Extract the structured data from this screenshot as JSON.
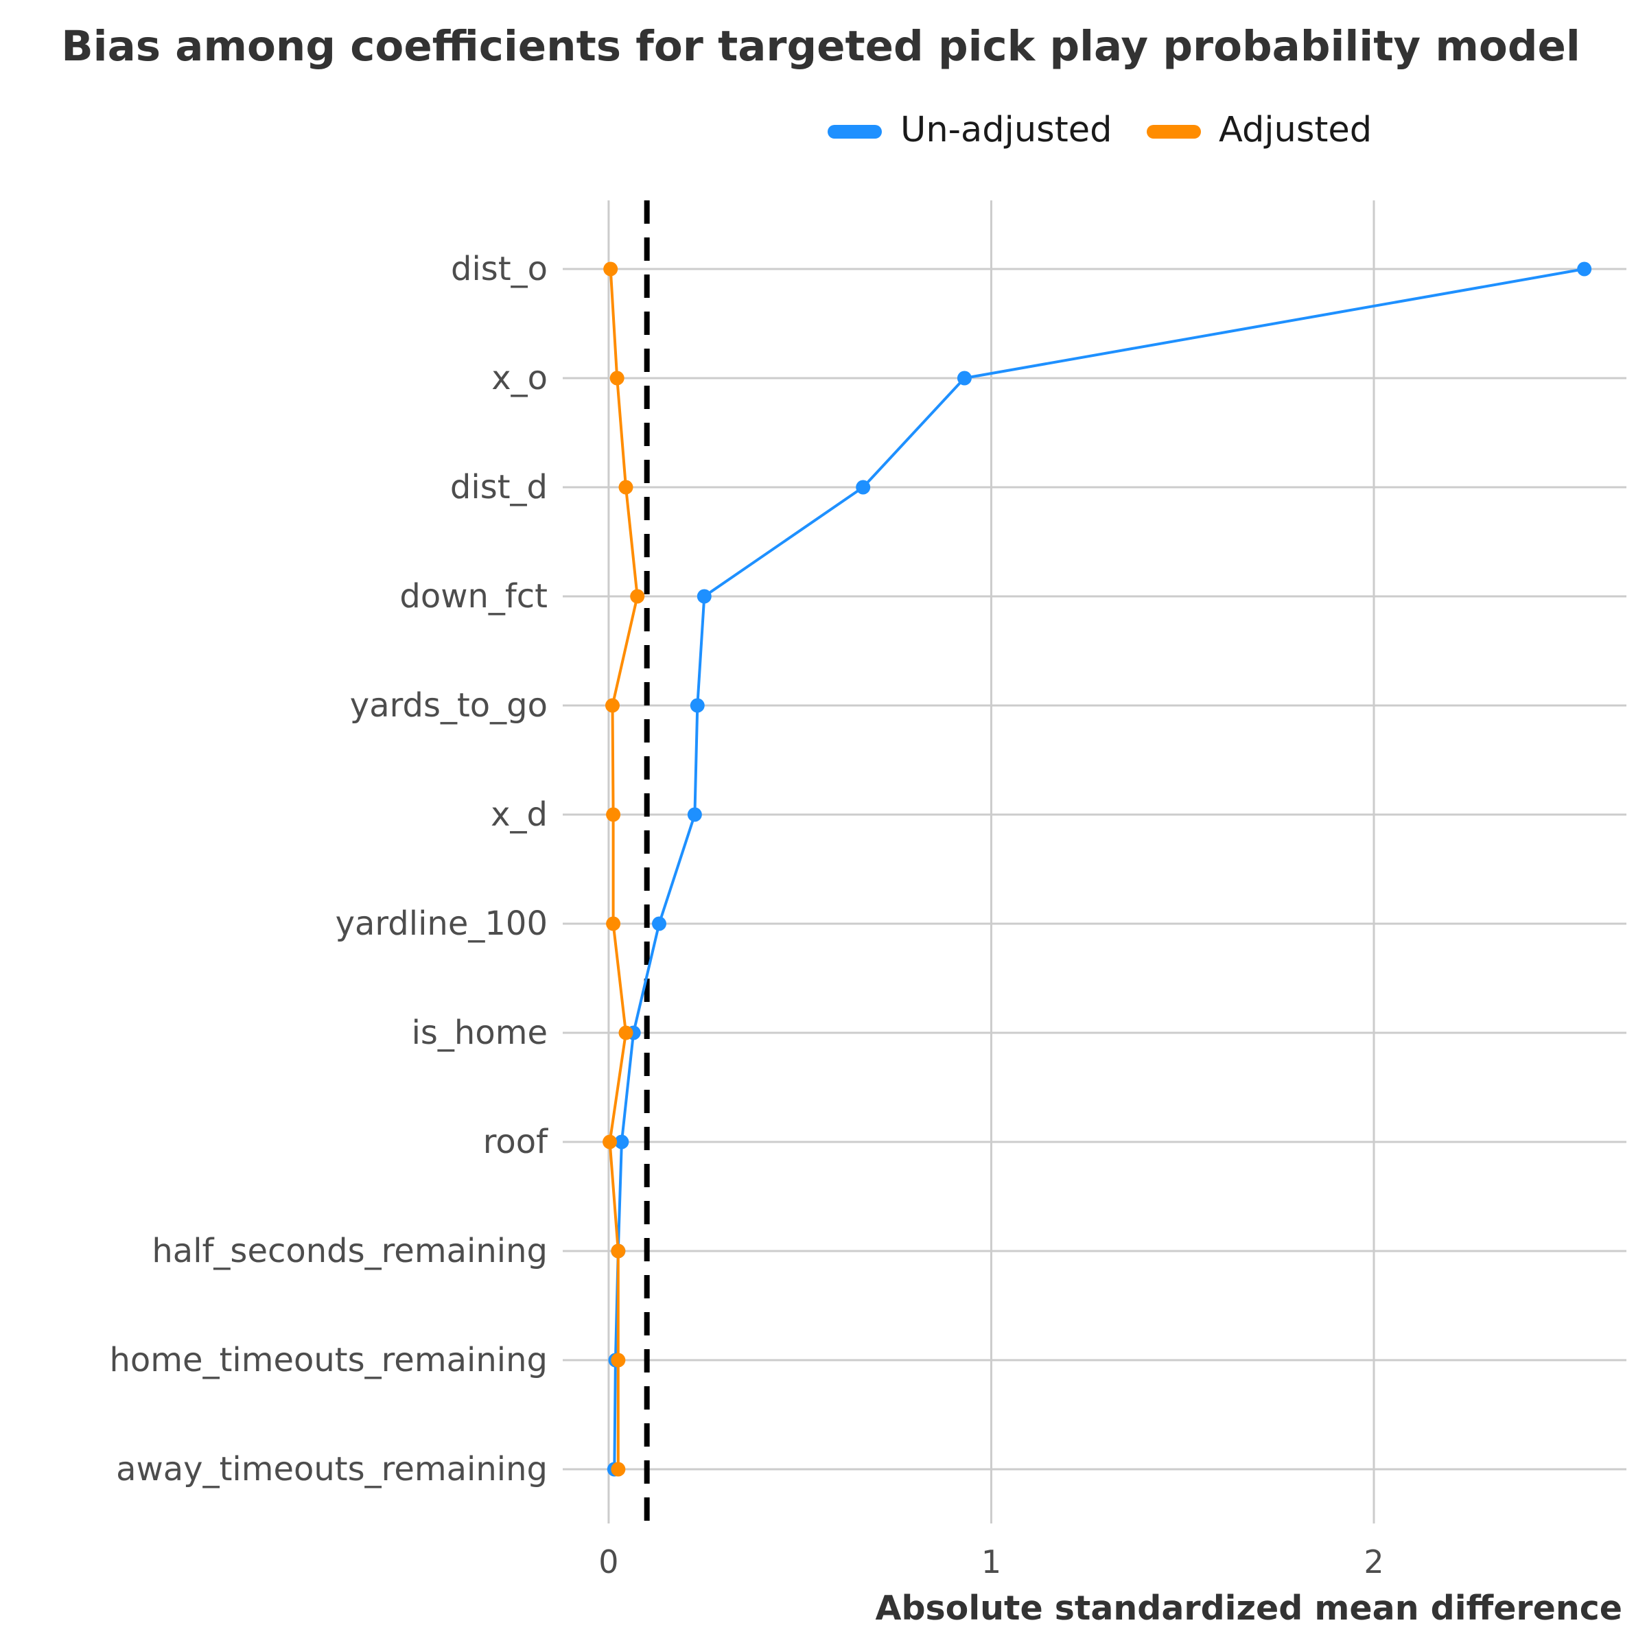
{
  "chart_data": {
    "type": "line",
    "title": "Bias among coefficients for targeted pick play probability model",
    "xlabel": "Absolute standardized mean difference",
    "ylabel": "",
    "xlim": [
      -0.12,
      2.66
    ],
    "x_ticks": [
      0,
      1,
      2
    ],
    "threshold": 0.1,
    "grid": true,
    "legend_position": "top-right",
    "categories": [
      "dist_o",
      "x_o",
      "dist_d",
      "down_fct",
      "yards_to_go",
      "x_d",
      "yardline_100",
      "is_home",
      "roof",
      "half_seconds_remaining",
      "home_timeouts_remaining",
      "away_timeouts_remaining"
    ],
    "series": [
      {
        "name": "Un-adjusted",
        "color": "#1e90ff",
        "values": [
          2.55,
          0.93,
          0.665,
          0.25,
          0.232,
          0.225,
          0.132,
          0.065,
          0.034,
          0.025,
          0.018,
          0.015
        ]
      },
      {
        "name": "Adjusted",
        "color": "#ff8c00",
        "values": [
          0.005,
          0.022,
          0.045,
          0.075,
          0.01,
          0.012,
          0.012,
          0.045,
          0.003,
          0.025,
          0.025,
          0.025
        ]
      }
    ]
  }
}
